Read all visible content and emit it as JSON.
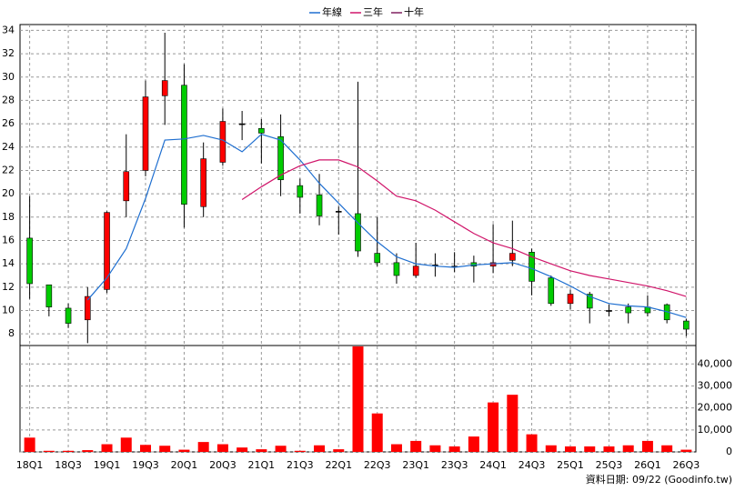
{
  "chart_data": [
    {
      "type": "candlestick",
      "categories": [
        "18Q1",
        null,
        "18Q3",
        null,
        "19Q1",
        null,
        "19Q3",
        null,
        "20Q1",
        null,
        "20Q3",
        null,
        "21Q1",
        null,
        "21Q3",
        null,
        "22Q1",
        null,
        "22Q3",
        null,
        "23Q1",
        null,
        "23Q3",
        null,
        "24Q1",
        null,
        "24Q3",
        null,
        "25Q1",
        null,
        "25Q3",
        null,
        "26Q1",
        null,
        "26Q3"
      ],
      "open": [
        16.2,
        12.2,
        10.2,
        9.2,
        11.8,
        19.4,
        22.0,
        28.4,
        29.3,
        18.9,
        22.7,
        26.0,
        25.6,
        24.9,
        20.7,
        19.9,
        18.5,
        18.3,
        14.9,
        14.1,
        13.0,
        13.9,
        13.8,
        14.1,
        13.8,
        14.3,
        15.0,
        12.8,
        10.6,
        11.4,
        10.0,
        10.3,
        10.3,
        10.5,
        9.1
      ],
      "high": [
        19.8,
        12.2,
        10.6,
        12.0,
        18.5,
        25.1,
        29.7,
        33.8,
        31.1,
        24.4,
        27.3,
        27.1,
        26.4,
        26.8,
        21.3,
        21.7,
        18.9,
        29.6,
        18.0,
        14.9,
        15.8,
        14.9,
        15.0,
        14.7,
        17.4,
        17.7,
        15.3,
        13.0,
        11.8,
        11.6,
        10.5,
        10.6,
        11.3,
        10.6,
        9.3
      ],
      "low": [
        11.0,
        9.5,
        8.5,
        7.2,
        11.5,
        18.0,
        21.5,
        25.9,
        17.1,
        18.0,
        22.4,
        24.6,
        22.6,
        19.8,
        18.3,
        17.3,
        16.5,
        14.6,
        13.8,
        12.3,
        12.8,
        12.9,
        13.3,
        12.4,
        13.2,
        13.8,
        11.3,
        10.4,
        10.1,
        8.9,
        9.5,
        8.9,
        9.5,
        8.9,
        7.8
      ],
      "close": [
        12.3,
        10.3,
        8.9,
        11.2,
        18.4,
        21.9,
        28.3,
        29.7,
        19.1,
        23.0,
        26.2,
        26.0,
        25.2,
        21.2,
        19.7,
        18.1,
        18.5,
        15.1,
        14.1,
        13.0,
        13.8,
        13.9,
        13.8,
        13.8,
        14.1,
        14.9,
        12.5,
        10.6,
        11.4,
        10.2,
        10.0,
        9.8,
        9.8,
        9.2,
        8.4
      ],
      "up_color": "#ff0000",
      "down_color": "#00cc00",
      "series": [
        {
          "name": "年線",
          "color": "#1f6fd0",
          "values": [
            null,
            null,
            null,
            10.9,
            12.8,
            15.3,
            19.6,
            24.6,
            24.7,
            25.0,
            24.6,
            23.6,
            25.1,
            24.6,
            22.9,
            20.9,
            19.2,
            17.5,
            15.9,
            14.6,
            14.0,
            13.8,
            13.7,
            13.9,
            14.0,
            14.1,
            13.6,
            12.9,
            12.1,
            11.2,
            10.6,
            10.4,
            10.3,
            9.9,
            9.4
          ]
        },
        {
          "name": "三年",
          "color": "#d0156a",
          "values": [
            null,
            null,
            null,
            null,
            null,
            null,
            null,
            null,
            null,
            null,
            null,
            19.5,
            20.6,
            21.6,
            22.4,
            22.9,
            22.9,
            22.3,
            21.1,
            19.8,
            19.4,
            18.6,
            17.6,
            16.6,
            15.8,
            15.3,
            14.6,
            14.0,
            13.4,
            13.0,
            12.7,
            12.4,
            12.1,
            11.7,
            11.2
          ]
        },
        {
          "name": "十年",
          "color": "#802060",
          "values": [
            null,
            null,
            null,
            null,
            null,
            null,
            null,
            null,
            null,
            null,
            null,
            null,
            null,
            null,
            null,
            null,
            null,
            null,
            null,
            null,
            null,
            null,
            null,
            null,
            null,
            null,
            null,
            null,
            null,
            null,
            null,
            null,
            null,
            null,
            null
          ]
        }
      ],
      "ylim": [
        7,
        34.5
      ],
      "yticks": [
        8,
        10,
        12,
        14,
        16,
        18,
        20,
        22,
        24,
        26,
        28,
        30,
        32,
        34
      ],
      "grid": true
    },
    {
      "type": "bar",
      "color": "#ff0000",
      "values": [
        6500,
        500,
        500,
        800,
        3500,
        6500,
        3200,
        2800,
        1000,
        4500,
        3500,
        2000,
        1200,
        2800,
        500,
        3000,
        1200,
        48000,
        17500,
        3500,
        5000,
        3000,
        2500,
        7000,
        22500,
        26000,
        8000,
        3000,
        2500,
        2500,
        2500,
        3000,
        5000,
        3000,
        1000
      ],
      "ylim": [
        0,
        48400
      ],
      "yticks": [
        0,
        {
          "value": 10000,
          "label": "10,000"
        },
        {
          "value": 20000,
          "label": "20,000"
        },
        {
          "value": 30000,
          "label": "30,000"
        },
        {
          "value": 40000,
          "label": "40,000"
        }
      ],
      "grid": true
    }
  ],
  "footnote": "資料日期: 09/22 (Goodinfo.tw)"
}
